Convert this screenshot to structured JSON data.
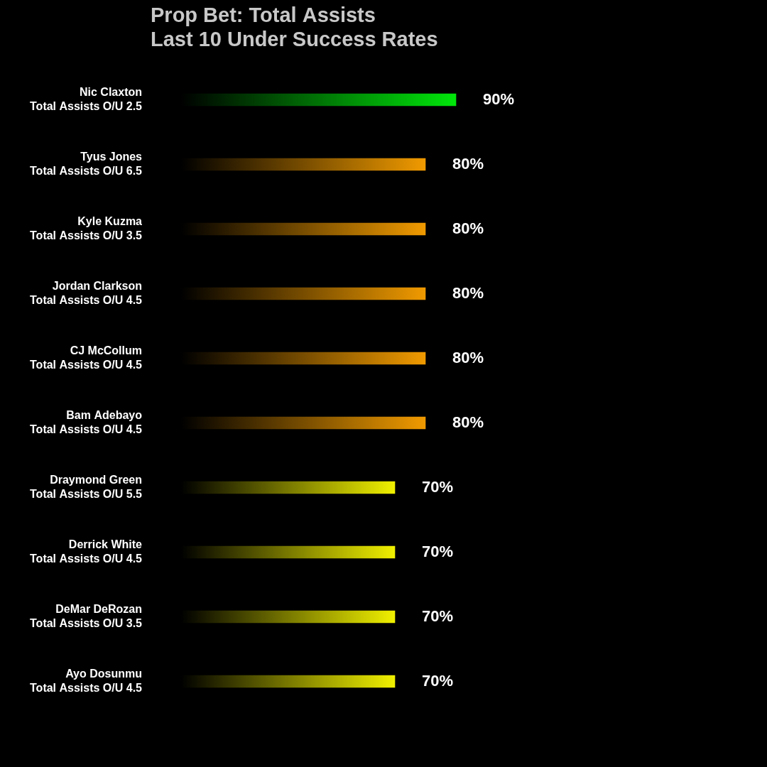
{
  "chart_data": {
    "type": "bar",
    "orientation": "horizontal",
    "title": [
      "Prop Bet: Total Assists",
      "Last 10 Under Success Rates"
    ],
    "categories": [
      [
        "Nic Claxton",
        "Total Assists O/U 2.5"
      ],
      [
        "Tyus Jones",
        "Total Assists O/U 6.5"
      ],
      [
        "Kyle Kuzma",
        "Total Assists O/U 3.5"
      ],
      [
        "Jordan Clarkson",
        "Total Assists O/U 4.5"
      ],
      [
        "CJ McCollum",
        "Total Assists O/U 4.5"
      ],
      [
        "Bam Adebayo",
        "Total Assists O/U 4.5"
      ],
      [
        "Draymond Green",
        "Total Assists O/U 5.5"
      ],
      [
        "Derrick White",
        "Total Assists O/U 4.5"
      ],
      [
        "DeMar DeRozan",
        "Total Assists O/U 3.5"
      ],
      [
        "Ayo Dosunmu",
        "Total Assists O/U 4.5"
      ]
    ],
    "values": [
      90,
      80,
      80,
      80,
      80,
      80,
      70,
      70,
      70,
      70
    ],
    "value_labels": [
      "90%",
      "80%",
      "80%",
      "80%",
      "80%",
      "80%",
      "70%",
      "70%",
      "70%",
      "70%"
    ],
    "colors": [
      "#00e60a",
      "#f09a00",
      "#f09a00",
      "#f09a00",
      "#f09a00",
      "#f09a00",
      "#f0f000",
      "#f0f000",
      "#f0f000",
      "#f0f000"
    ],
    "xlim": [
      0,
      100
    ],
    "data_labels": true,
    "tick_labels": "y",
    "grid": false
  }
}
